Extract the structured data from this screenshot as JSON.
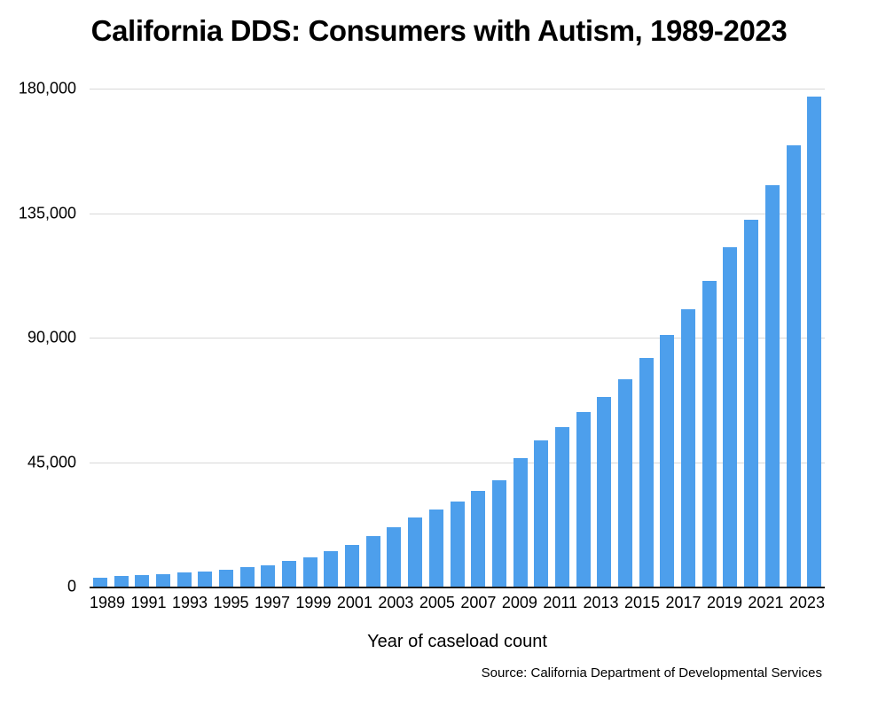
{
  "chart_data": {
    "type": "bar",
    "title": "California DDS: Consumers with Autism, 1989-2023",
    "xlabel": "Year of caseload count",
    "source": "Source: California Department of Developmental Services",
    "legend": null,
    "grid": "horizontal",
    "bar_color": "#4D9FEC",
    "gridline_color": "#D8D8D8",
    "axis_color": "#1A1A1A",
    "text_color": "#000000",
    "background_color": "#FFFFFF",
    "ylim": [
      0,
      180000
    ],
    "y_ticks": [
      {
        "value": 0,
        "label": "0"
      },
      {
        "value": 45000,
        "label": "45,000"
      },
      {
        "value": 90000,
        "label": "90,000"
      },
      {
        "value": 135000,
        "label": "135,000"
      },
      {
        "value": 180000,
        "label": "180,000"
      }
    ],
    "categories": [
      1989,
      1990,
      1991,
      1992,
      1993,
      1994,
      1995,
      1996,
      1997,
      1998,
      1999,
      2000,
      2001,
      2002,
      2003,
      2004,
      2005,
      2006,
      2007,
      2008,
      2009,
      2010,
      2011,
      2012,
      2013,
      2014,
      2015,
      2016,
      2017,
      2018,
      2019,
      2020,
      2021,
      2022,
      2023
    ],
    "values": [
      3300,
      3700,
      4100,
      4500,
      5000,
      5600,
      6100,
      6900,
      7800,
      9300,
      10600,
      12700,
      15200,
      18200,
      21600,
      25000,
      27800,
      30800,
      34500,
      38400,
      46400,
      53000,
      57700,
      63100,
      68700,
      74900,
      82700,
      90900,
      100200,
      110500,
      122600,
      132700,
      145000,
      159600,
      177000
    ],
    "x_tick_labels": [
      "1989",
      "",
      "1991",
      "",
      "1993",
      "",
      "1995",
      "",
      "1997",
      "",
      "1999",
      "",
      "2001",
      "",
      "2003",
      "",
      "2005",
      "",
      "2007",
      "",
      "2009",
      "",
      "2011",
      "",
      "2013",
      "",
      "2015",
      "",
      "2017",
      "",
      "2019",
      "",
      "2021",
      "",
      "2023"
    ]
  }
}
